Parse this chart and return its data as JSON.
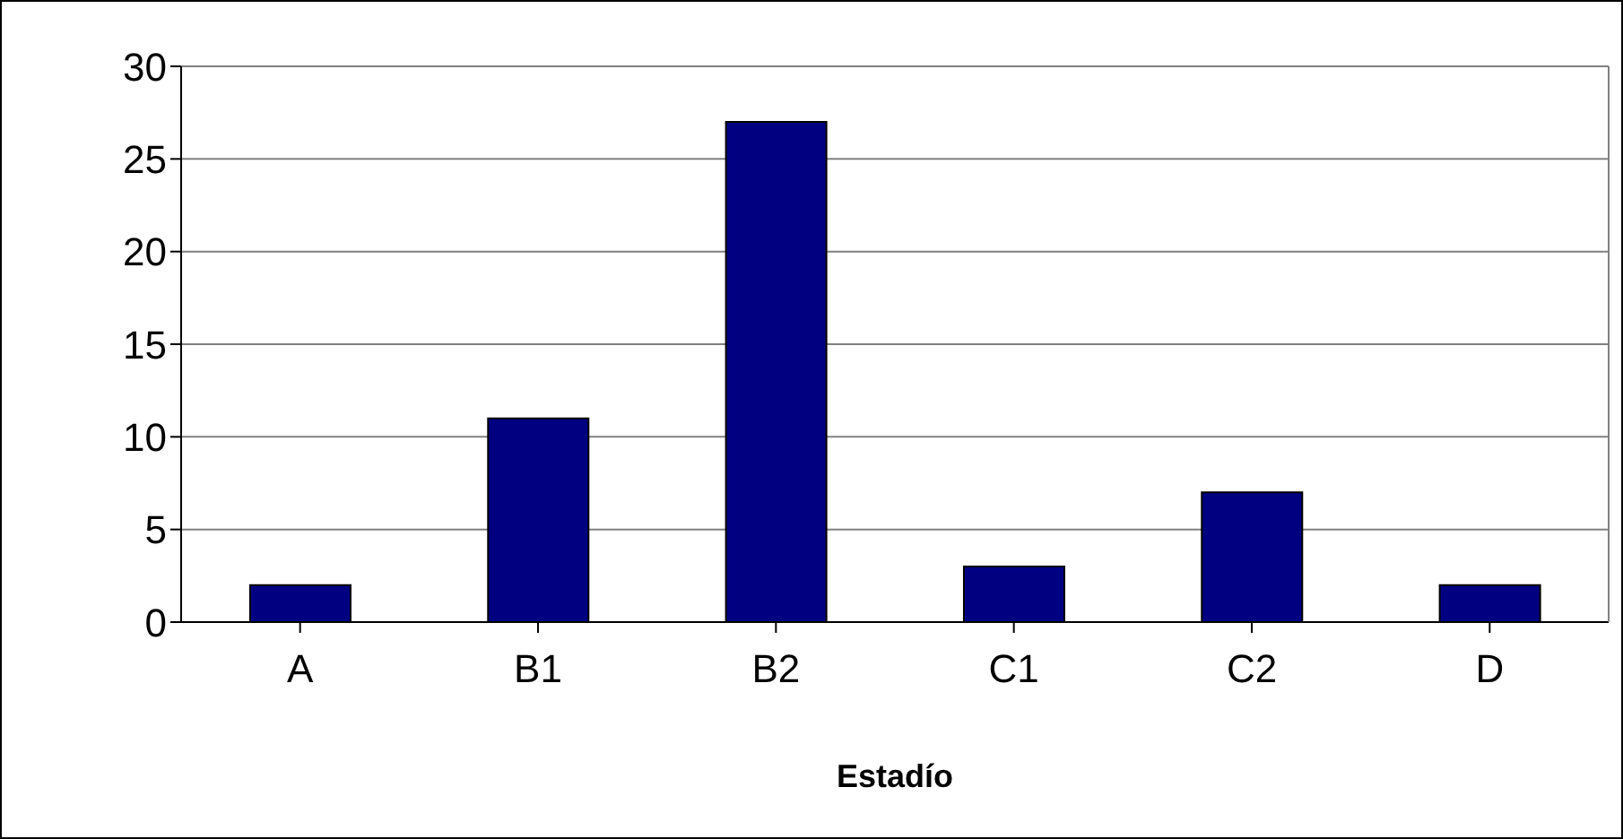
{
  "chart_data": {
    "type": "bar",
    "xlabel": "Estadío",
    "categories": [
      "A",
      "B1",
      "B2",
      "C1",
      "C2",
      "D"
    ],
    "values": [
      2,
      11,
      27,
      3,
      7,
      2
    ],
    "color": "#000080",
    "ylim": [
      0,
      30
    ],
    "yticks": [
      0,
      5,
      10,
      15,
      20,
      25,
      30
    ],
    "grid": "y"
  }
}
